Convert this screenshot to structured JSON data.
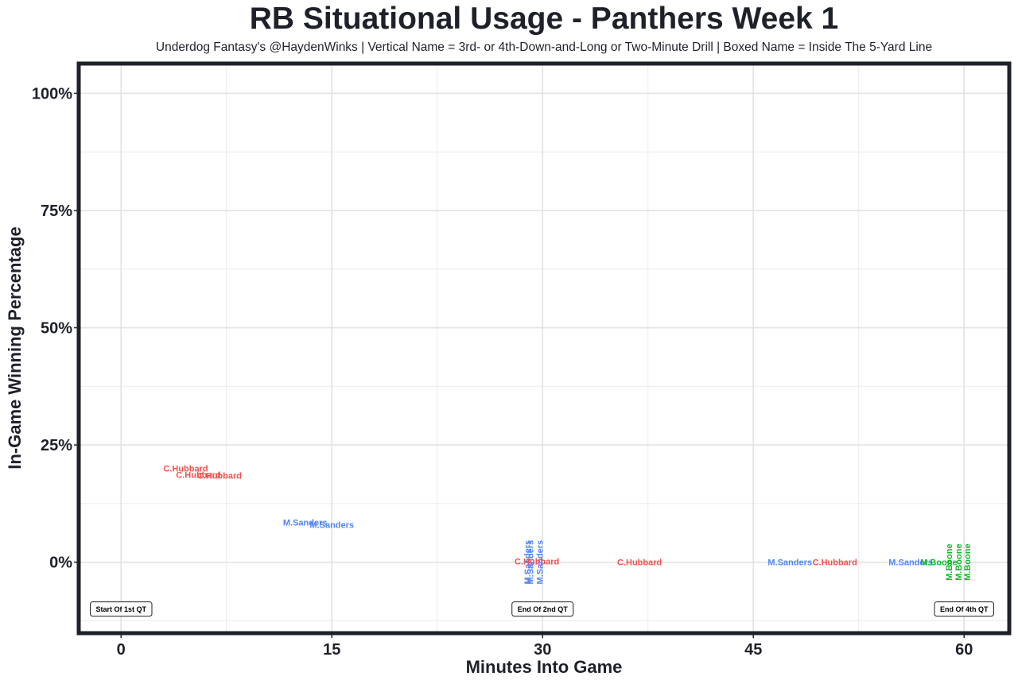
{
  "chart_data": {
    "type": "scatter",
    "title": "RB Situational Usage - Panthers Week 1",
    "subtitle": "Underdog Fantasy's @HaydenWinks | Vertical Name = 3rd- or 4th-Down-and-Long or Two-Minute Drill | Boxed Name = Inside The 5-Yard Line",
    "xlabel": "Minutes Into Game",
    "ylabel": "In-Game Winning Percentage",
    "xlim": [
      -2.9,
      63.1
    ],
    "ylim": [
      -0.148,
      1.06
    ],
    "x_ticks": [
      0,
      15,
      30,
      45,
      60
    ],
    "x_tick_labels": [
      "0",
      "15",
      "30",
      "45",
      "60"
    ],
    "y_ticks": [
      0,
      0.25,
      0.5,
      0.75,
      1.0
    ],
    "y_tick_labels": [
      "0%",
      "25%",
      "50%",
      "75%",
      "100%"
    ],
    "grid": true,
    "colors": {
      "C.Hubbard": "#f0524f",
      "M.Sanders": "#4f86f7",
      "M.Boone": "#10b82a"
    },
    "points": [
      {
        "label": "C.Hubbard",
        "x": 4.6,
        "y": 0.2,
        "vertical": false
      },
      {
        "label": "C.Hubbard",
        "x": 5.5,
        "y": 0.187,
        "vertical": false
      },
      {
        "label": "C.Hubbard",
        "x": 7.0,
        "y": 0.185,
        "vertical": false
      },
      {
        "label": "M.Sanders",
        "x": 13.1,
        "y": 0.085,
        "vertical": false
      },
      {
        "label": "M.Sanders",
        "x": 15.0,
        "y": 0.08,
        "vertical": false
      },
      {
        "label": "M.Sanders",
        "x": 28.9,
        "y": 0.0,
        "vertical": true
      },
      {
        "label": "M.Sanders",
        "x": 29.1,
        "y": 0.0,
        "vertical": true
      },
      {
        "label": "M.Sanders",
        "x": 29.8,
        "y": 0.0,
        "vertical": true
      },
      {
        "label": "C.Hubbard",
        "x": 29.6,
        "y": 0.002,
        "vertical": false
      },
      {
        "label": "C.Hubbard",
        "x": 36.9,
        "y": 0.0,
        "vertical": false
      },
      {
        "label": "M.Sanders",
        "x": 47.6,
        "y": 0.0,
        "vertical": false
      },
      {
        "label": "C.Hubbard",
        "x": 50.8,
        "y": 0.0,
        "vertical": false
      },
      {
        "label": "M.Sanders",
        "x": 56.2,
        "y": 0.0,
        "vertical": false
      },
      {
        "label": "M.Boone",
        "x": 58.2,
        "y": 0.0,
        "vertical": false
      },
      {
        "label": "M.Boone",
        "x": 58.9,
        "y": 0.0,
        "vertical": true
      },
      {
        "label": "M.Boone",
        "x": 59.6,
        "y": 0.0,
        "vertical": true
      },
      {
        "label": "M.Boone",
        "x": 60.2,
        "y": 0.0,
        "vertical": true
      }
    ],
    "annotations": [
      {
        "text": "Start Of 1st QT",
        "x": 0,
        "y": -0.1
      },
      {
        "text": "End Of 2nd QT",
        "x": 30,
        "y": -0.1
      },
      {
        "text": "End Of 4th QT",
        "x": 60,
        "y": -0.1
      }
    ]
  }
}
